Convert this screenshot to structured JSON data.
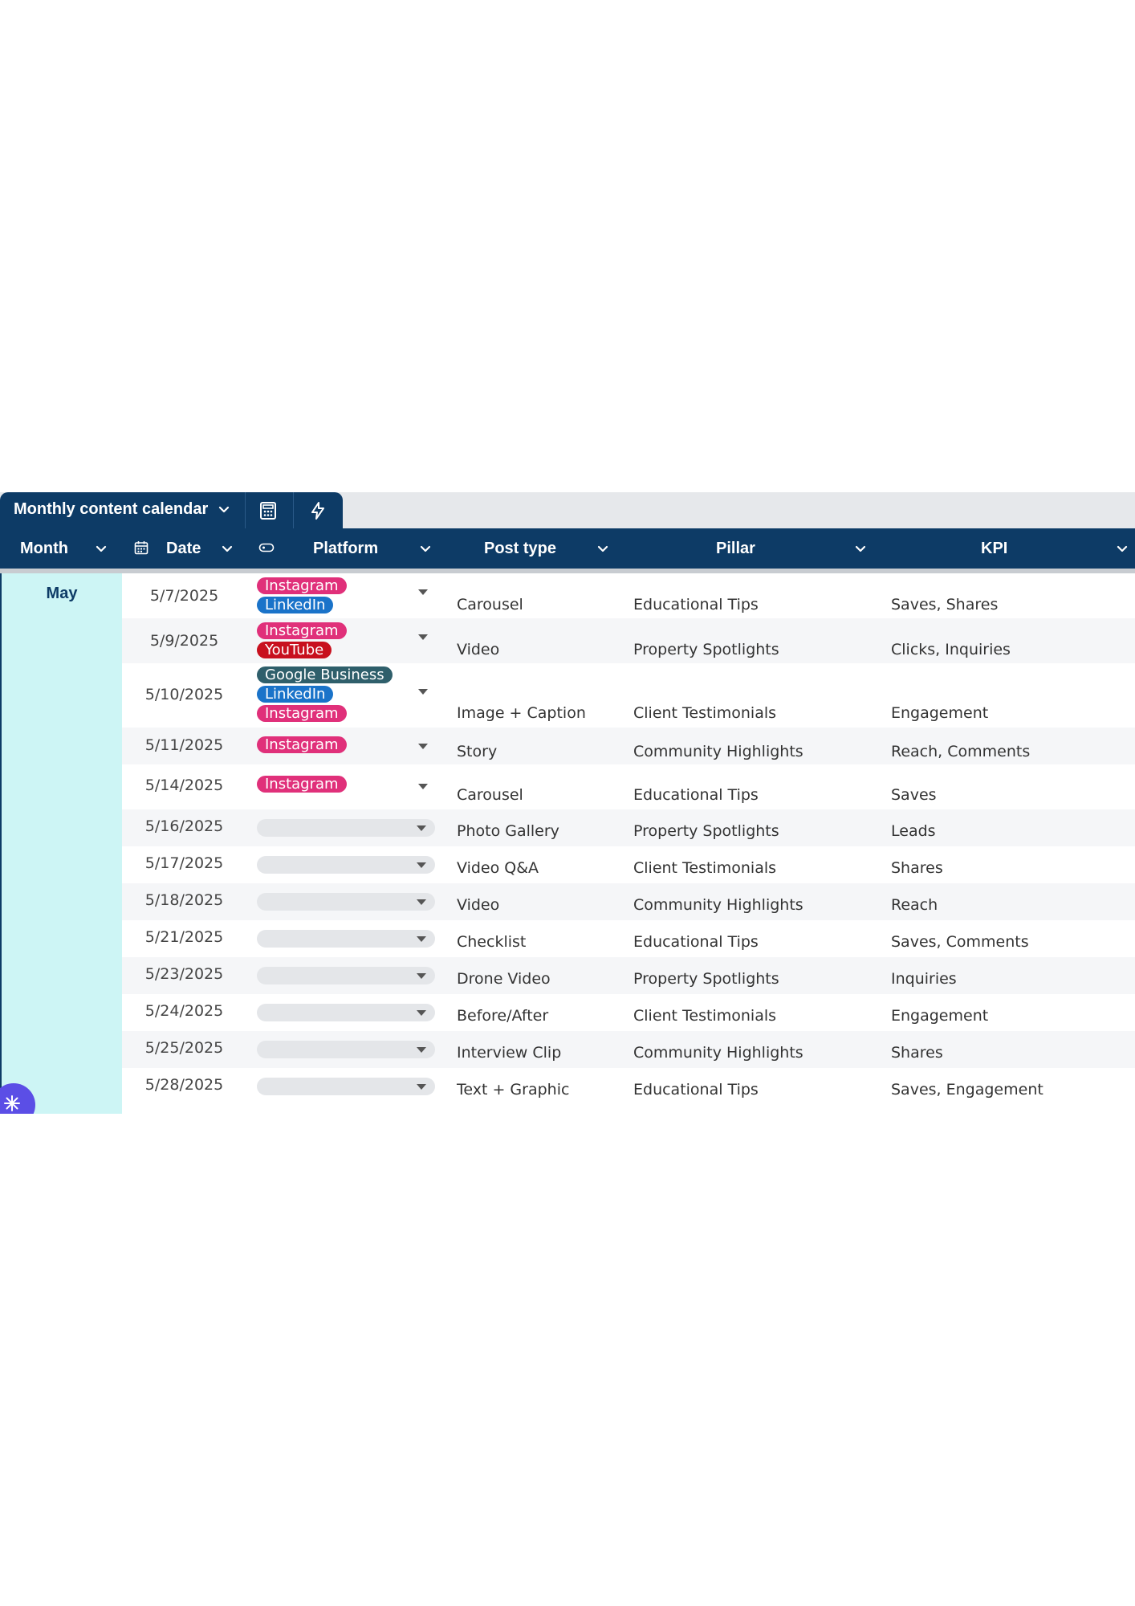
{
  "toolbar": {
    "title": "Monthly content calendar",
    "icons": [
      "chevron-down-icon",
      "calculator-icon",
      "lightning-icon"
    ]
  },
  "columns": {
    "month": "Month",
    "date": "Date",
    "platform": "Platform",
    "post_type": "Post type",
    "pillar": "Pillar",
    "kpi": "KPI"
  },
  "group": {
    "month": "May"
  },
  "platform_colors": {
    "Instagram": "#e0307a",
    "LinkedIn": "#1a73c9",
    "YouTube": "#c8101e",
    "Google Business": "#2f5f6b"
  },
  "rows": [
    {
      "date": "5/7/2025",
      "platforms": [
        "Instagram",
        "LinkedIn"
      ],
      "post_type": "Carousel",
      "pillar": "Educational Tips",
      "kpi": "Saves, Shares"
    },
    {
      "date": "5/9/2025",
      "platforms": [
        "Instagram",
        "YouTube"
      ],
      "post_type": "Video",
      "pillar": "Property Spotlights",
      "kpi": "Clicks, Inquiries"
    },
    {
      "date": "5/10/2025",
      "platforms": [
        "Google Business",
        "LinkedIn",
        "Instagram"
      ],
      "post_type": "Image + Caption",
      "pillar": "Client Testimonials",
      "kpi": "Engagement"
    },
    {
      "date": "5/11/2025",
      "platforms": [
        "Instagram"
      ],
      "post_type": "Story",
      "pillar": "Community Highlights",
      "kpi": "Reach, Comments"
    },
    {
      "date": "5/14/2025",
      "platforms": [
        "Instagram"
      ],
      "post_type": "Carousel",
      "pillar": "Educational Tips",
      "kpi": "Saves"
    },
    {
      "date": "5/16/2025",
      "platforms": [],
      "post_type": "Photo Gallery",
      "pillar": "Property Spotlights",
      "kpi": "Leads"
    },
    {
      "date": "5/17/2025",
      "platforms": [],
      "post_type": "Video Q&A",
      "pillar": "Client Testimonials",
      "kpi": "Shares"
    },
    {
      "date": "5/18/2025",
      "platforms": [],
      "post_type": "Video",
      "pillar": "Community Highlights",
      "kpi": "Reach"
    },
    {
      "date": "5/21/2025",
      "platforms": [],
      "post_type": "Checklist",
      "pillar": "Educational Tips",
      "kpi": "Saves, Comments"
    },
    {
      "date": "5/23/2025",
      "platforms": [],
      "post_type": "Drone Video",
      "pillar": "Property Spotlights",
      "kpi": "Inquiries"
    },
    {
      "date": "5/24/2025",
      "platforms": [],
      "post_type": "Before/After",
      "pillar": "Client Testimonials",
      "kpi": "Engagement"
    },
    {
      "date": "5/25/2025",
      "platforms": [],
      "post_type": "Interview Clip",
      "pillar": "Community Highlights",
      "kpi": "Shares"
    },
    {
      "date": "5/28/2025",
      "platforms": [],
      "post_type": "Text + Graphic",
      "pillar": "Educational Tips",
      "kpi": "Saves, Engagement"
    }
  ]
}
